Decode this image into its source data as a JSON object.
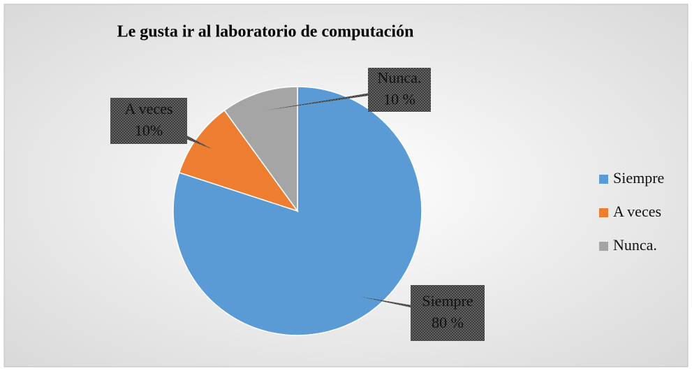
{
  "chart_data": {
    "type": "pie",
    "title": "Le gusta ir al laboratorio de computación",
    "categories": [
      "Siempre",
      "A veces",
      "Nunca."
    ],
    "values": [
      80,
      10,
      10
    ],
    "value_labels": [
      "80 %",
      "10%",
      "10 %"
    ],
    "colors": [
      "#5b9bd5",
      "#ed7d31",
      "#a5a5a5"
    ],
    "legend": "right"
  }
}
